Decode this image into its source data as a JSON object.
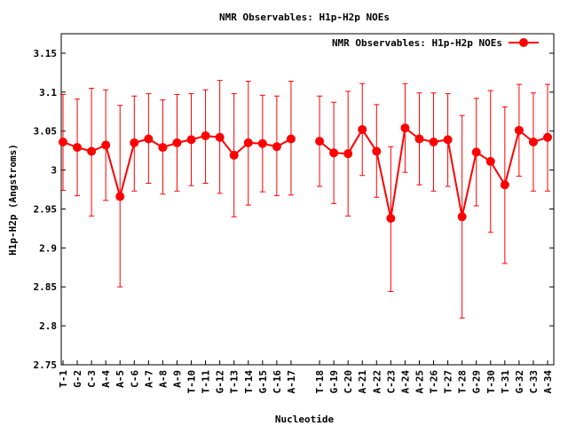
{
  "chart_data": {
    "type": "line",
    "title": "NMR Observables: H1p-H2p NOEs",
    "xlabel": "Nucleotide",
    "ylabel": "H1p-H2p (Angstroms)",
    "ylim": [
      2.75,
      3.175
    ],
    "yticks": [
      2.75,
      2.8,
      2.85,
      2.9,
      2.95,
      3,
      3.05,
      3.1,
      3.15
    ],
    "ytick_labels": [
      "2.75",
      "2.8",
      "2.85",
      "2.9",
      "2.95",
      "3",
      "3.05",
      "3.1",
      "3.15"
    ],
    "grid": false,
    "legend_position": "top-right",
    "color": "#ff0000",
    "categories": [
      "T-1",
      "G-2",
      "C-3",
      "A-4",
      "A-5",
      "C-6",
      "A-7",
      "A-8",
      "A-9",
      "T-10",
      "T-11",
      "G-12",
      "T-13",
      "T-14",
      "G-15",
      "C-16",
      "A-17",
      "T-18",
      "G-19",
      "C-20",
      "A-21",
      "A-22",
      "C-23",
      "A-24",
      "A-25",
      "T-26",
      "T-27",
      "T-28",
      "G-29",
      "T-30",
      "T-31",
      "G-32",
      "C-33",
      "A-34"
    ],
    "series": [
      {
        "name": "NMR Observables: H1p-H2p NOEs",
        "segments": [
          {
            "values": [
              3.036,
              3.029,
              3.024,
              3.032,
              2.966,
              3.035,
              3.04,
              3.029,
              3.035,
              3.039,
              3.044,
              3.042,
              3.019,
              3.035,
              3.034,
              3.03,
              3.04
            ],
            "err_low": [
              2.974,
              2.967,
              2.941,
              2.961,
              2.85,
              2.973,
              2.983,
              2.969,
              2.973,
              2.98,
              2.983,
              2.97,
              2.94,
              2.955,
              2.972,
              2.967,
              2.968
            ],
            "err_high": [
              3.097,
              3.091,
              3.105,
              3.103,
              3.083,
              3.095,
              3.098,
              3.09,
              3.097,
              3.098,
              3.103,
              3.115,
              3.098,
              3.114,
              3.096,
              3.095,
              3.114
            ]
          },
          {
            "values": [
              3.037,
              3.022,
              3.021,
              3.052,
              3.024,
              2.938,
              3.054,
              3.04,
              3.036,
              3.039,
              2.94,
              3.023,
              3.011,
              2.981,
              3.051,
              3.036,
              3.042
            ],
            "err_low": [
              2.979,
              2.957,
              2.941,
              2.993,
              2.965,
              2.844,
              2.997,
              2.981,
              2.973,
              2.979,
              2.81,
              2.954,
              2.92,
              2.88,
              2.992,
              2.973,
              2.973
            ],
            "err_high": [
              3.095,
              3.087,
              3.101,
              3.111,
              3.084,
              3.03,
              3.111,
              3.099,
              3.099,
              3.098,
              3.07,
              3.092,
              3.102,
              3.081,
              3.11,
              3.099,
              3.11
            ]
          }
        ]
      }
    ]
  }
}
